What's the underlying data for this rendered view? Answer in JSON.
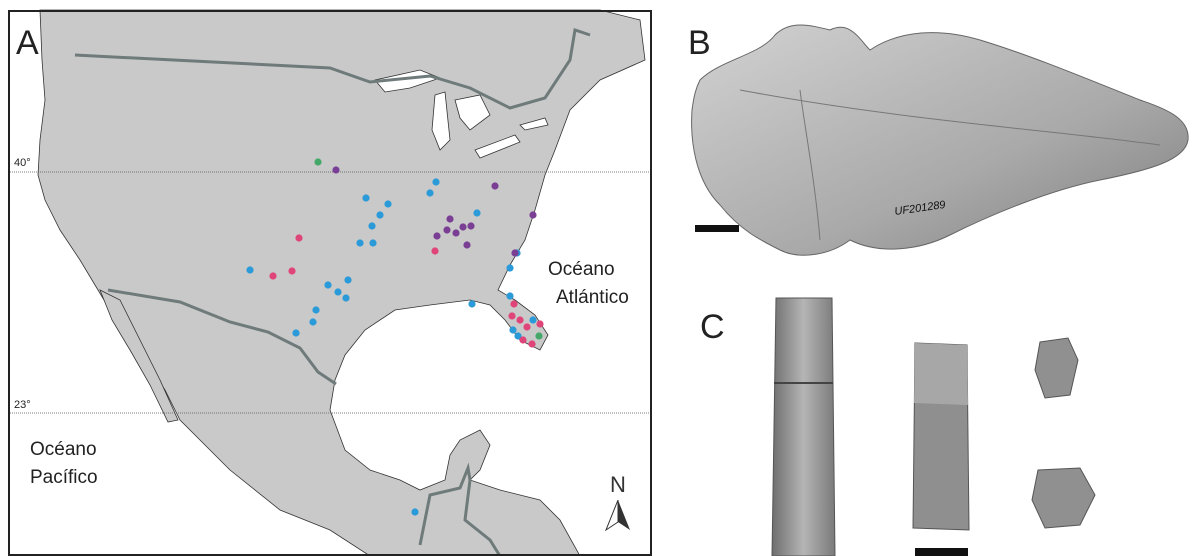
{
  "panels": {
    "a": {
      "label": "A",
      "lat_labels": [
        "40°",
        "23°"
      ],
      "atlantic": [
        "Océano",
        "Atlántico"
      ],
      "pacific": [
        "Océano",
        "Pacífico"
      ],
      "north": "N"
    },
    "b": {
      "label": "B",
      "specimen": "UF201289"
    },
    "c": {
      "label": "C"
    }
  }
}
